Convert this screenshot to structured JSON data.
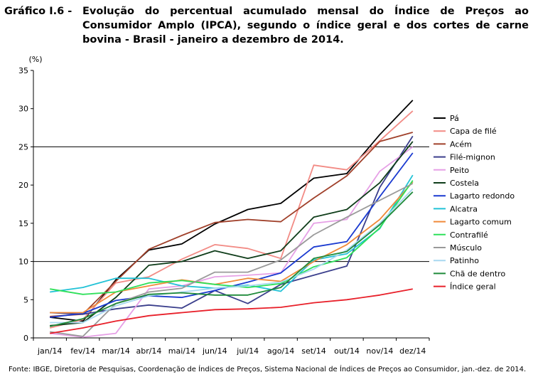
{
  "header": {
    "label": "Gráfico I.6 -",
    "text": "Evolução do percentual acumulado mensal do Índice de Preços ao Consumidor Amplo (IPCA), segundo o índice geral e dos cortes de carne bovina - Brasil - janeiro a dezembro de 2014."
  },
  "source": "Fonte: IBGE, Diretoria de Pesquisas, Coordenação de Índices de Preços, Sistema Nacional de Índices de Preços ao Consumidor, jan.-dez. de 2014.",
  "chart_data": {
    "type": "line",
    "ylabel": "(%)",
    "xlabel": "",
    "ylim": [
      0,
      35
    ],
    "yticks": [
      "0",
      "5",
      "10",
      "15",
      "20",
      "25",
      "30",
      "35"
    ],
    "reference_lines": [
      10,
      25
    ],
    "legend_position": "right",
    "categories": [
      "jan/14",
      "fev/14",
      "mar/14",
      "abr/14",
      "mai/14",
      "jun/14",
      "jul/14",
      "ago/14",
      "set/14",
      "out/14",
      "nov/14",
      "dez/14"
    ],
    "series": [
      {
        "name": "Pá",
        "color": "#000000",
        "values": [
          2.7,
          2.2,
          7.6,
          11.5,
          12.3,
          14.9,
          16.8,
          17.6,
          20.9,
          21.5,
          26.6,
          31.1
        ]
      },
      {
        "name": "Capa de filé",
        "color": "#f28b85",
        "values": [
          1.3,
          2.4,
          7.2,
          8.0,
          10.3,
          12.2,
          11.7,
          10.4,
          22.6,
          22.0,
          25.8,
          29.7
        ]
      },
      {
        "name": "Acém",
        "color": "#a0402a",
        "values": [
          2.8,
          3.1,
          7.4,
          11.6,
          13.4,
          15.1,
          15.5,
          15.2,
          18.3,
          21.2,
          25.7,
          26.9
        ]
      },
      {
        "name": "Filé-mignon",
        "color": "#3b3f8c",
        "values": [
          3.3,
          3.1,
          3.8,
          4.3,
          3.9,
          6.2,
          4.5,
          7.0,
          8.2,
          9.4,
          19.7,
          26.4
        ]
      },
      {
        "name": "Peito",
        "color": "#e6a0e6",
        "values": [
          0.6,
          0.1,
          0.6,
          6.4,
          6.8,
          8.0,
          8.2,
          8.5,
          15.0,
          15.5,
          21.8,
          25.0
        ]
      },
      {
        "name": "Costela",
        "color": "#0f3d1a",
        "values": [
          1.6,
          2.0,
          5.3,
          9.5,
          10.0,
          11.4,
          10.4,
          11.4,
          15.8,
          16.8,
          20.3,
          25.7
        ]
      },
      {
        "name": "Lagarto redondo",
        "color": "#1a3ad0",
        "values": [
          2.7,
          3.2,
          4.9,
          5.5,
          5.3,
          6.2,
          7.3,
          8.5,
          11.9,
          12.6,
          18.5,
          24.2
        ]
      },
      {
        "name": "Alcatra",
        "color": "#21c2d6",
        "values": [
          6.0,
          6.6,
          7.8,
          7.8,
          6.8,
          6.5,
          6.9,
          6.1,
          10.2,
          11.0,
          14.3,
          21.3
        ]
      },
      {
        "name": "Lagarto comum",
        "color": "#f08a3a",
        "values": [
          3.3,
          3.3,
          6.0,
          6.8,
          7.6,
          7.0,
          7.8,
          7.4,
          10.0,
          12.2,
          15.5,
          20.4
        ]
      },
      {
        "name": "Contrafilé",
        "color": "#2ee05a",
        "values": [
          6.4,
          5.7,
          6.0,
          7.2,
          7.5,
          7.0,
          6.6,
          7.1,
          9.3,
          10.5,
          14.4,
          20.6
        ]
      },
      {
        "name": "Músculo",
        "color": "#9a9a9a",
        "values": [
          0.8,
          0.2,
          4.5,
          6.0,
          6.5,
          8.6,
          8.6,
          10.2,
          13.5,
          15.8,
          18.0,
          20.2
        ]
      },
      {
        "name": "Patinho",
        "color": "#a8d8f0",
        "values": [
          2.0,
          2.0,
          4.2,
          5.5,
          6.0,
          6.5,
          6.8,
          7.3,
          9.0,
          11.5,
          15.0,
          19.5
        ]
      },
      {
        "name": "Chã de dentro",
        "color": "#1f8a3a",
        "values": [
          1.5,
          2.5,
          4.5,
          5.7,
          5.9,
          5.6,
          5.6,
          6.6,
          10.4,
          11.3,
          14.8,
          19.1
        ]
      },
      {
        "name": "Índice geral",
        "color": "#e8202a",
        "values": [
          0.6,
          1.3,
          2.2,
          2.9,
          3.3,
          3.7,
          3.8,
          4.0,
          4.6,
          5.0,
          5.6,
          6.4
        ]
      }
    ]
  }
}
